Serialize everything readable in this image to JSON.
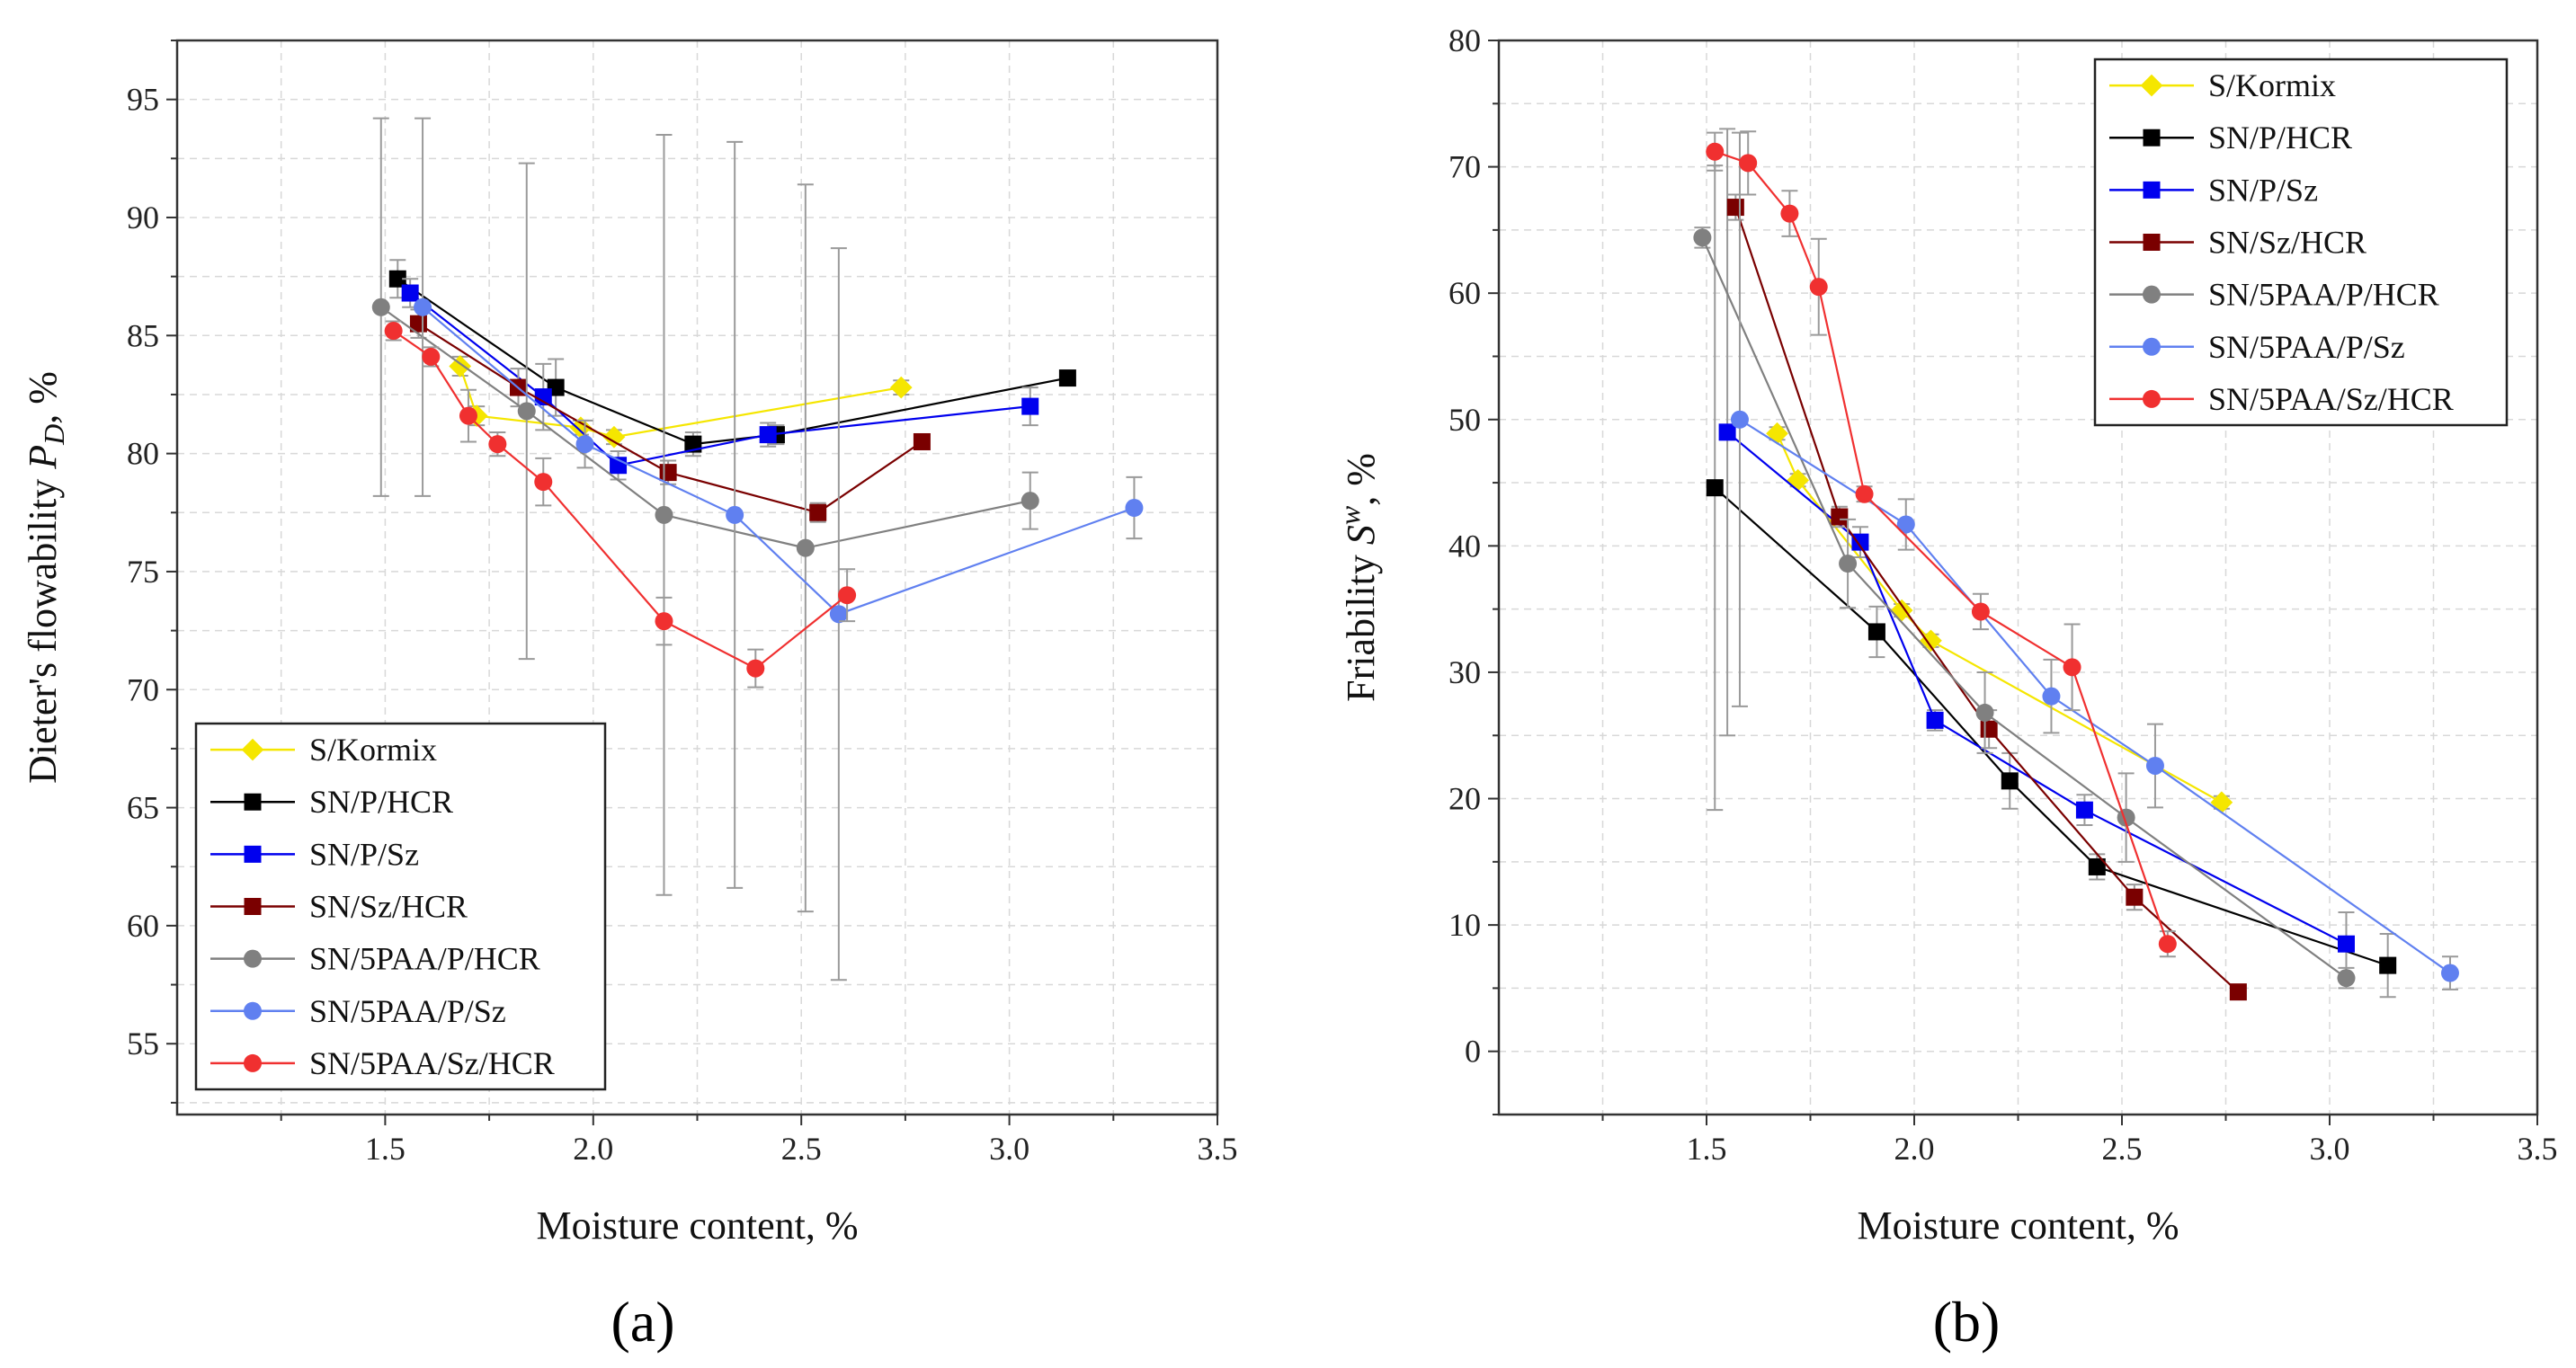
{
  "colors": {
    "S/Kormix": "#f5e600",
    "SN/P/HCR": "#000000",
    "SN/P/Sz": "#0000ee",
    "SN/Sz/HCR": "#7a0000",
    "SN/5PAA/P/HCR": "#808080",
    "SN/5PAA/P/Sz": "#6080f0",
    "SN/5PAA/Sz/HCR": "#f03030"
  },
  "chart_data": [
    {
      "type": "line",
      "panel": "(a)",
      "xlabel": "Moisture content, %",
      "ylabel_prefix": "Dieter's flowability ",
      "ylabel_symbol": "P",
      "ylabel_sub": "D",
      "ylabel_suffix": ", %",
      "xlim": [
        1.0,
        3.5
      ],
      "ylim": [
        52.0,
        97.5
      ],
      "xticks": [
        1.5,
        2.0,
        2.5,
        3.0,
        3.5
      ],
      "yticks": [
        55,
        60,
        65,
        70,
        75,
        80,
        85,
        90,
        95
      ],
      "xtick_labels": [
        "1.5",
        "2.0",
        "2.5",
        "3.0",
        "3.5"
      ],
      "ytick_labels": [
        "55",
        "60",
        "65",
        "70",
        "75",
        "80",
        "85",
        "90",
        "95"
      ],
      "grid": true,
      "legend_position": "bottom-left",
      "series": [
        {
          "name": "S/Kormix",
          "marker": "diamond",
          "x": [
            1.68,
            1.72,
            1.97,
            2.05,
            2.74
          ],
          "y": [
            83.7,
            81.6,
            81.1,
            80.7,
            82.8
          ],
          "err": [
            0.4,
            0.4,
            0.3,
            0.3,
            0.3
          ]
        },
        {
          "name": "SN/P/HCR",
          "marker": "square",
          "x": [
            1.53,
            1.91,
            2.24,
            2.44,
            3.14
          ],
          "y": [
            87.4,
            82.8,
            80.4,
            80.8,
            83.2
          ],
          "err": [
            0.8,
            1.2,
            0.5,
            0.4,
            0.3
          ]
        },
        {
          "name": "SN/P/Sz",
          "marker": "square",
          "x": [
            1.56,
            1.88,
            2.06,
            2.42,
            3.05
          ],
          "y": [
            86.8,
            82.4,
            79.5,
            80.8,
            82.0
          ],
          "err": [
            0.6,
            1.4,
            0.6,
            0.5,
            0.8
          ]
        },
        {
          "name": "SN/Sz/HCR",
          "marker": "square",
          "x": [
            1.58,
            1.82,
            2.18,
            2.54,
            2.79
          ],
          "y": [
            85.5,
            82.8,
            79.2,
            77.5,
            80.5
          ],
          "err": [
            0.6,
            0.8,
            0.5,
            0.4,
            0.3
          ]
        },
        {
          "name": "SN/5PAA/P/HCR",
          "marker": "circle",
          "x": [
            1.49,
            1.84,
            2.17,
            2.51,
            3.05
          ],
          "y": [
            86.2,
            81.8,
            77.4,
            76.0,
            78.0
          ],
          "err": [
            8.0,
            10.5,
            16.1,
            15.4,
            1.2
          ]
        },
        {
          "name": "SN/5PAA/P/Sz",
          "marker": "circle",
          "x": [
            1.59,
            1.98,
            2.34,
            2.59,
            3.3
          ],
          "y": [
            86.2,
            80.4,
            77.4,
            73.2,
            77.7
          ],
          "err": [
            8.0,
            1.0,
            15.8,
            15.5,
            1.3
          ]
        },
        {
          "name": "SN/5PAA/Sz/HCR",
          "marker": "circle",
          "x": [
            1.52,
            1.61,
            1.7,
            1.77,
            1.88,
            2.17,
            2.39,
            2.61
          ],
          "y": [
            85.2,
            84.1,
            81.6,
            80.4,
            78.8,
            72.9,
            70.9,
            74.0
          ],
          "err": [
            0.4,
            0.4,
            1.1,
            0.5,
            1.0,
            1.0,
            0.8,
            1.1
          ]
        }
      ]
    },
    {
      "type": "line",
      "panel": "(b)",
      "xlabel": "Moisture content, %",
      "ylabel_prefix": "Friability ",
      "ylabel_symbol": "S",
      "ylabel_sup": "w",
      "ylabel_suffix": ", %",
      "xlim": [
        1.0,
        3.5
      ],
      "ylim": [
        -5.0,
        80.0
      ],
      "xticks": [
        1.5,
        2.0,
        2.5,
        3.0,
        3.5
      ],
      "yticks": [
        0,
        10,
        20,
        30,
        40,
        50,
        60,
        70,
        80
      ],
      "xtick_labels": [
        "1.5",
        "2.0",
        "2.5",
        "3.0",
        "3.5"
      ],
      "ytick_labels": [
        "0",
        "10",
        "20",
        "30",
        "40",
        "50",
        "60",
        "70",
        "80"
      ],
      "grid": true,
      "legend_position": "top-right",
      "series": [
        {
          "name": "S/Kormix",
          "marker": "diamond",
          "x": [
            1.67,
            1.72,
            1.97,
            2.04,
            2.74
          ],
          "y": [
            48.9,
            45.2,
            34.9,
            32.5,
            19.7
          ],
          "err": [
            0.5,
            0.5,
            0.5,
            0.5,
            0.5
          ]
        },
        {
          "name": "SN/P/HCR",
          "marker": "square",
          "x": [
            1.52,
            1.91,
            2.23,
            2.44,
            3.14
          ],
          "y": [
            44.6,
            33.2,
            21.4,
            14.6,
            6.8
          ],
          "err": [
            25.5,
            2.0,
            2.2,
            1.0,
            2.5
          ]
        },
        {
          "name": "SN/P/Sz",
          "marker": "square",
          "x": [
            1.55,
            1.87,
            2.05,
            2.41,
            3.04
          ],
          "y": [
            49.0,
            40.3,
            26.2,
            19.1,
            8.5
          ],
          "err": [
            24.0,
            1.2,
            0.8,
            1.2,
            2.5
          ]
        },
        {
          "name": "SN/Sz/HCR",
          "marker": "square",
          "x": [
            1.57,
            1.82,
            2.18,
            2.53,
            2.78
          ],
          "y": [
            66.8,
            42.3,
            25.5,
            12.2,
            4.7
          ],
          "err": [
            1.0,
            0.8,
            1.5,
            1.0,
            0.5
          ]
        },
        {
          "name": "SN/5PAA/P/HCR",
          "marker": "circle",
          "x": [
            1.49,
            1.84,
            2.17,
            2.51,
            3.04
          ],
          "y": [
            64.4,
            38.6,
            26.8,
            18.5,
            5.8
          ],
          "err": [
            0.8,
            3.5,
            3.2,
            3.5,
            0.8
          ]
        },
        {
          "name": "SN/5PAA/P/Sz",
          "marker": "circle",
          "x": [
            1.58,
            1.98,
            2.33,
            2.58,
            3.29
          ],
          "y": [
            50.0,
            41.7,
            28.1,
            22.6,
            6.2
          ],
          "err": [
            22.7,
            2.0,
            2.9,
            3.3,
            1.3
          ]
        },
        {
          "name": "SN/5PAA/Sz/HCR",
          "marker": "circle",
          "x": [
            1.52,
            1.6,
            1.7,
            1.77,
            1.88,
            2.16,
            2.38,
            2.61
          ],
          "y": [
            71.2,
            70.3,
            66.3,
            60.5,
            44.1,
            34.8,
            30.4,
            8.5
          ],
          "err": [
            1.5,
            2.5,
            1.8,
            3.8,
            0.6,
            1.4,
            3.4,
            1.0
          ]
        }
      ]
    }
  ]
}
